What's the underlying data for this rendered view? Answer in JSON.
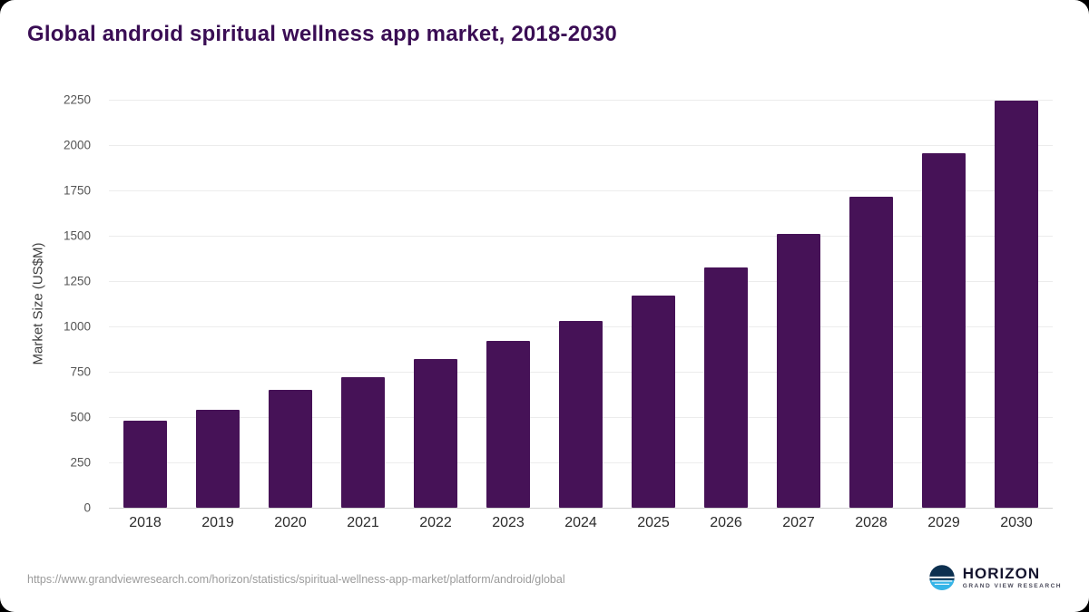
{
  "chart_data": {
    "type": "bar",
    "title": "Global android spiritual wellness app market, 2018-2030",
    "categories": [
      "2018",
      "2019",
      "2020",
      "2021",
      "2022",
      "2023",
      "2024",
      "2025",
      "2026",
      "2027",
      "2028",
      "2029",
      "2030"
    ],
    "values": [
      480,
      540,
      648,
      722,
      818,
      918,
      1032,
      1168,
      1325,
      1510,
      1715,
      1955,
      2245
    ],
    "xlabel": "",
    "ylabel": "Market Size (US$M)",
    "ylim": [
      0,
      2250
    ],
    "yticks": [
      0,
      250,
      500,
      750,
      1000,
      1250,
      1500,
      1750,
      2000,
      2250
    ],
    "grid": true,
    "legend": "none",
    "bar_color": "#461257",
    "title_color": "#3a0d54"
  },
  "footer": {
    "source_url": "https://www.grandviewresearch.com/horizon/statistics/spiritual-wellness-app-market/platform/android/global",
    "logo_title": "HORIZON",
    "logo_subtitle": "GRAND VIEW RESEARCH"
  }
}
